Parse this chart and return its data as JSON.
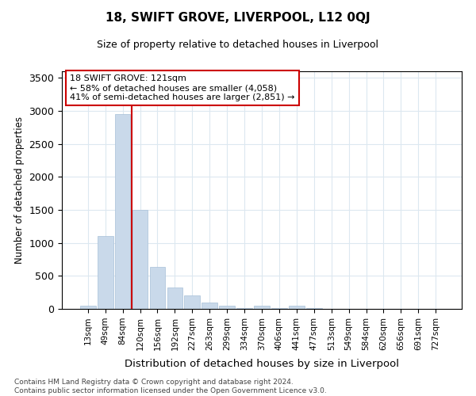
{
  "title": "18, SWIFT GROVE, LIVERPOOL, L12 0QJ",
  "subtitle": "Size of property relative to detached houses in Liverpool",
  "xlabel": "Distribution of detached houses by size in Liverpool",
  "ylabel": "Number of detached properties",
  "categories": [
    "13sqm",
    "49sqm",
    "84sqm",
    "120sqm",
    "156sqm",
    "192sqm",
    "227sqm",
    "263sqm",
    "299sqm",
    "334sqm",
    "370sqm",
    "406sqm",
    "441sqm",
    "477sqm",
    "513sqm",
    "549sqm",
    "584sqm",
    "620sqm",
    "656sqm",
    "691sqm",
    "727sqm"
  ],
  "values": [
    50,
    1100,
    2950,
    1500,
    640,
    330,
    200,
    100,
    50,
    15,
    50,
    10,
    50,
    10,
    5,
    5,
    3,
    2,
    1,
    1,
    1
  ],
  "bar_color": "#c9d9ea",
  "bar_edge_color": "#a8c0d8",
  "property_line_color": "#cc0000",
  "property_line_index": 2.5,
  "annotation_title": "18 SWIFT GROVE: 121sqm",
  "annotation_line1": "← 58% of detached houses are smaller (4,058)",
  "annotation_line2": "41% of semi-detached houses are larger (2,851) →",
  "annotation_box_facecolor": "#ffffff",
  "annotation_box_edgecolor": "#cc0000",
  "ylim": [
    0,
    3600
  ],
  "yticks": [
    0,
    500,
    1000,
    1500,
    2000,
    2500,
    3000,
    3500
  ],
  "bg_color": "#ffffff",
  "grid_color": "#dce8f0",
  "footer_line1": "Contains HM Land Registry data © Crown copyright and database right 2024.",
  "footer_line2": "Contains public sector information licensed under the Open Government Licence v3.0."
}
